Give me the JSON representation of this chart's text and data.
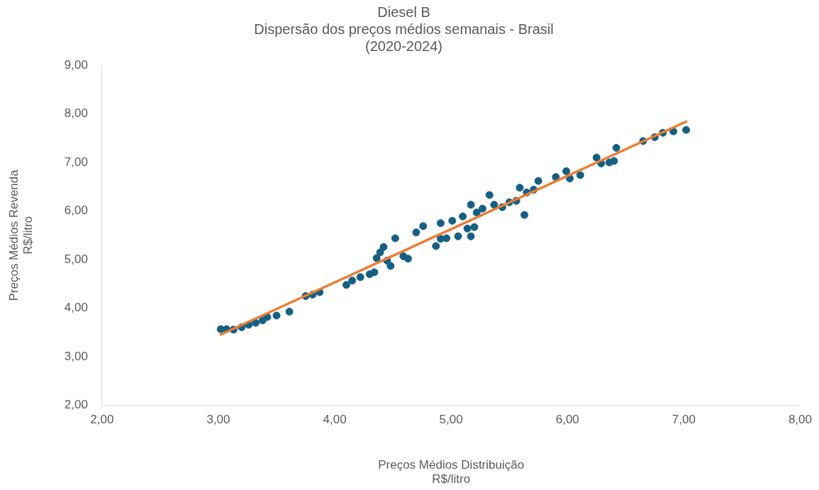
{
  "chart_data": {
    "type": "scatter",
    "title": "Diesel B\nDispersão dos preços médios semanais - Brasil\n(2020-2024)",
    "xlabel": "Preços Médios Distribuição\nR$/litro",
    "ylabel": "Preços Médios Revenda\nR$/litro",
    "xlim": [
      2,
      8
    ],
    "xticks": [
      {
        "value": 2,
        "label": "2,00"
      },
      {
        "value": 3,
        "label": "3,00"
      },
      {
        "value": 4,
        "label": "4,00"
      },
      {
        "value": 5,
        "label": "5,00"
      },
      {
        "value": 6,
        "label": "6,00"
      },
      {
        "value": 7,
        "label": "7,00"
      },
      {
        "value": 8,
        "label": "8,00"
      }
    ],
    "ylim": [
      2,
      9
    ],
    "yticks": [
      {
        "value": 2,
        "label": "2,00"
      },
      {
        "value": 3,
        "label": "3,00"
      },
      {
        "value": 4,
        "label": "4,00"
      },
      {
        "value": 5,
        "label": "5,00"
      },
      {
        "value": 6,
        "label": "6,00"
      },
      {
        "value": 7,
        "label": "7,00"
      },
      {
        "value": 8,
        "label": "8,00"
      },
      {
        "value": 9,
        "label": "9,00"
      }
    ],
    "grid": false,
    "legend": false,
    "marker": "circle",
    "series": [
      {
        "color": "#156082",
        "x": [
          3.02,
          3.07,
          3.13,
          3.2,
          3.26,
          3.32,
          3.38,
          3.42,
          3.5,
          3.61,
          3.75,
          3.81,
          3.87,
          4.1,
          4.15,
          4.22,
          4.3,
          4.34,
          4.36,
          4.39,
          4.42,
          4.45,
          4.48,
          4.52,
          4.59,
          4.63,
          4.7,
          4.76,
          4.87,
          4.91,
          4.96,
          4.91,
          5.01,
          5.06,
          5.1,
          5.14,
          5.17,
          5.17,
          5.2,
          5.22,
          5.27,
          5.33,
          5.37,
          5.44,
          5.5,
          5.56,
          5.59,
          5.63,
          5.65,
          5.71,
          5.75,
          5.9,
          5.99,
          6.02,
          6.11,
          6.25,
          6.29,
          6.36,
          6.42,
          6.4,
          6.65,
          6.75,
          6.82,
          6.91,
          7.02
        ],
        "values": [
          3.57,
          3.57,
          3.56,
          3.61,
          3.66,
          3.7,
          3.75,
          3.82,
          3.85,
          3.93,
          4.25,
          4.28,
          4.33,
          4.48,
          4.57,
          4.64,
          4.7,
          4.74,
          5.03,
          5.15,
          5.26,
          4.98,
          4.87,
          5.44,
          5.07,
          5.02,
          5.56,
          5.69,
          5.28,
          5.43,
          5.44,
          5.75,
          5.8,
          5.48,
          5.89,
          5.64,
          5.48,
          6.13,
          5.67,
          5.97,
          6.05,
          6.33,
          6.13,
          6.08,
          6.18,
          6.21,
          6.48,
          5.92,
          6.38,
          6.44,
          6.62,
          6.7,
          6.82,
          6.67,
          6.74,
          7.1,
          6.98,
          7.0,
          7.3,
          7.03,
          7.44,
          7.52,
          7.61,
          7.64,
          7.67
        ]
      },
      {
        "type": "line",
        "color": "#ed7d31",
        "marker": "none",
        "x": [
          3.02,
          7.02
        ],
        "values": [
          3.46,
          7.84
        ]
      }
    ]
  }
}
